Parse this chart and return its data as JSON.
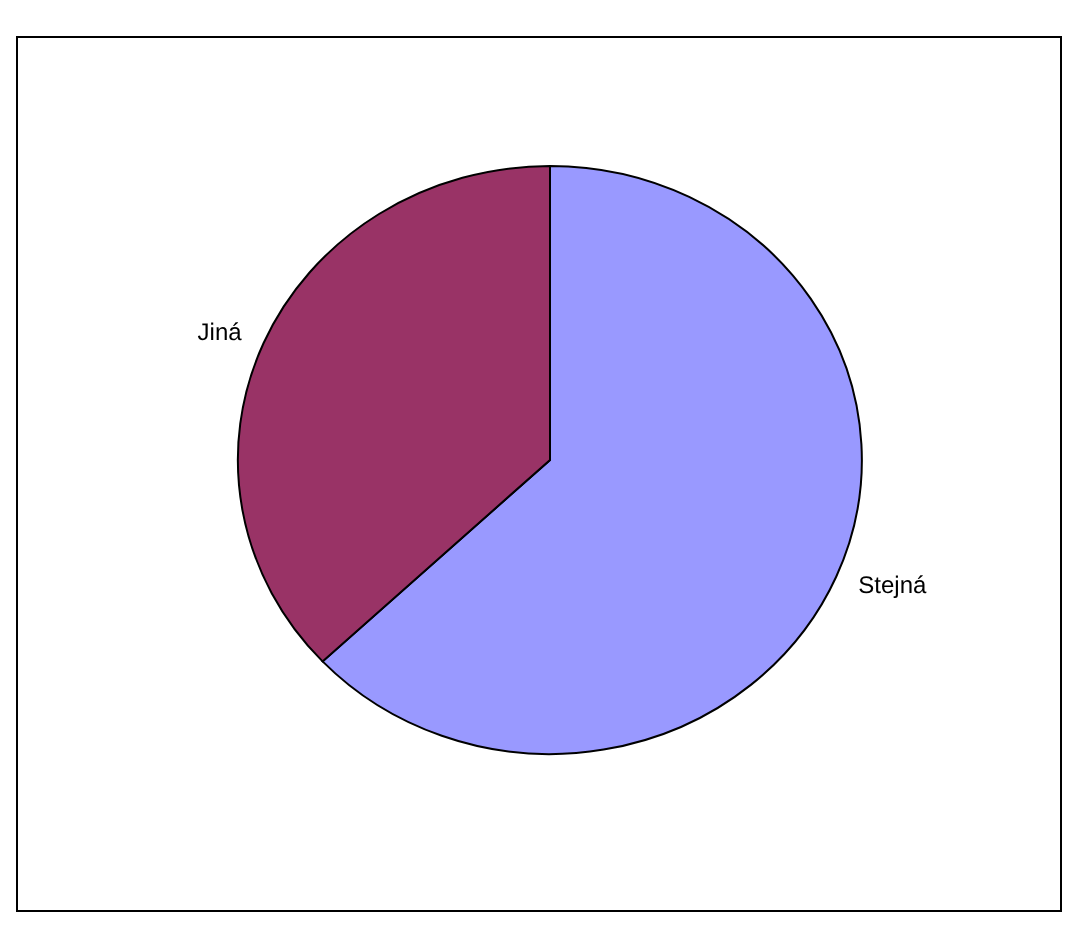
{
  "chart_data": {
    "type": "pie",
    "categories": [
      "Stejná",
      "Jiná"
    ],
    "values": [
      63,
      37
    ],
    "colors": [
      "#9999ff",
      "#993366"
    ]
  }
}
